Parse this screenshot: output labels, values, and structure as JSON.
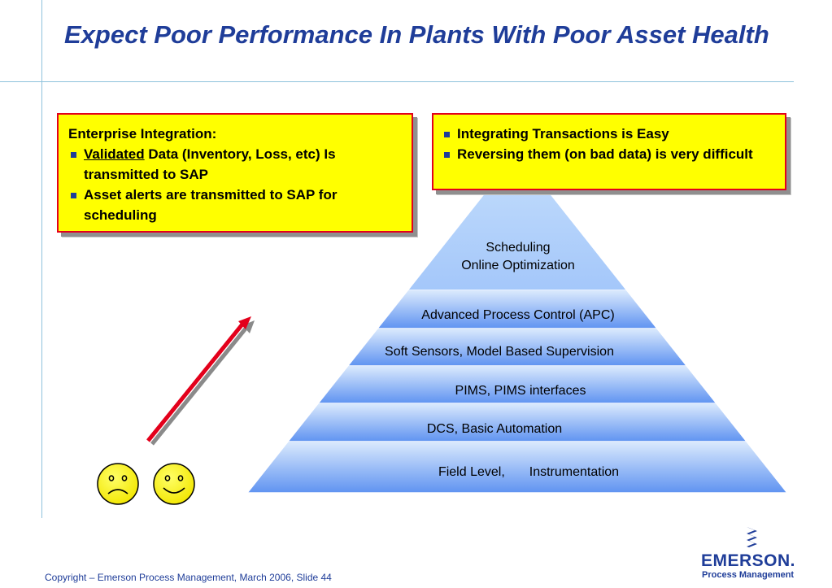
{
  "slide": {
    "title": "Expect Poor Performance In Plants With Poor Asset Health",
    "footer": "Copyright – Emerson Process Management, March 2006, Slide 44"
  },
  "callout_left": {
    "heading": "Enterprise Integration:",
    "bullets": [
      {
        "underlined": "Validated",
        "rest": " Data (Inventory, Loss, etc) Is transmitted to SAP"
      },
      {
        "text": "Asset alerts are transmitted to SAP for scheduling"
      }
    ]
  },
  "callout_right": {
    "bullets": [
      "Integrating Transactions is Easy",
      "Reversing them (on bad data) is very difficult"
    ]
  },
  "pyramid": {
    "tiers": [
      {
        "line1": "Scheduling",
        "line2": "Online Optimization"
      },
      {
        "label": "Advanced Process Control (APC)"
      },
      {
        "label": "Soft Sensors, Model Based Supervision"
      },
      {
        "label": "PIMS, PIMS interfaces"
      },
      {
        "label": "DCS, Basic Automation"
      },
      {
        "part1": "Field Level,",
        "part2": "Instrumentation"
      }
    ]
  },
  "faces": [
    {
      "mood": "sad-face-icon"
    },
    {
      "mood": "happy-face-icon"
    }
  ],
  "logo": {
    "name": "EMERSON.",
    "subtitle": "Process Management"
  },
  "colors": {
    "title": "#1f3d99",
    "callout_fill": "#ffff00",
    "callout_border": "#e3001b",
    "arrow": "#e3001b",
    "pyramid_top": "#a9cdfb",
    "pyramid_bottom": "#5b8ef0",
    "face": "#ffff00"
  }
}
